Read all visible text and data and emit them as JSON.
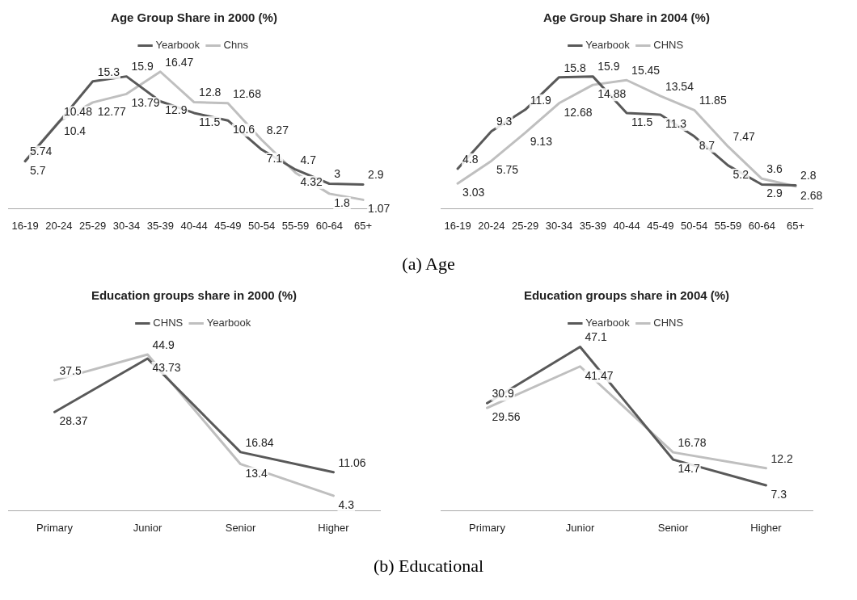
{
  "chart_data": [
    {
      "type": "line",
      "title": "Age Group Share in 2000 (%)",
      "categories": [
        "16-19",
        "20-24",
        "25-29",
        "30-34",
        "35-39",
        "40-44",
        "45-49",
        "50-54",
        "55-59",
        "60-64",
        "65+"
      ],
      "series": [
        {
          "name": "Yearbook",
          "color": "#595959",
          "values": [
            5.7,
            10.4,
            15.3,
            15.9,
            12.9,
            11.5,
            10.6,
            7.1,
            4.7,
            3,
            2.9
          ]
        },
        {
          "name": "Chns",
          "color": "#bfbfbf",
          "values": [
            5.74,
            10.48,
            12.77,
            13.79,
            16.47,
            12.8,
            12.68,
            8.27,
            4.32,
            1.8,
            1.07
          ]
        }
      ],
      "tick_labels": "x",
      "data_labels": true,
      "legend": "top",
      "marker": "none",
      "line_style": "solid",
      "grid": false,
      "annotations": [
        "(a) Age"
      ]
    },
    {
      "type": "line",
      "title": "Age Group Share in 2004 (%)",
      "categories": [
        "16-19",
        "20-24",
        "25-29",
        "30-34",
        "35-39",
        "40-44",
        "45-49",
        "50-54",
        "55-59",
        "60-64",
        "65+"
      ],
      "series": [
        {
          "name": "Yearbook",
          "color": "#595959",
          "values": [
            4.8,
            9.3,
            11.9,
            15.8,
            15.9,
            11.5,
            11.3,
            8.7,
            5.2,
            2.9,
            2.8
          ]
        },
        {
          "name": "CHNS",
          "color": "#bfbfbf",
          "values": [
            3.03,
            5.75,
            9.13,
            12.68,
            14.88,
            15.45,
            13.54,
            11.85,
            7.47,
            3.6,
            2.68
          ]
        }
      ],
      "tick_labels": "x",
      "data_labels": true,
      "legend": "top",
      "marker": "none",
      "line_style": "solid",
      "grid": false
    },
    {
      "type": "line",
      "title": "Education groups share in 2000 (%)",
      "categories": [
        "Primary",
        "Junior",
        "Senior",
        "Higher"
      ],
      "series": [
        {
          "name": "CHNS",
          "color": "#595959",
          "values": [
            28.37,
            43.73,
            16.84,
            11.06
          ]
        },
        {
          "name": "Yearbook",
          "color": "#bfbfbf",
          "values": [
            37.5,
            44.9,
            13.4,
            4.3
          ]
        }
      ],
      "tick_labels": "x",
      "data_labels": true,
      "legend": "top",
      "marker": "none",
      "line_style": "solid",
      "grid": false,
      "annotations": [
        "(b) Educational"
      ]
    },
    {
      "type": "line",
      "title": "Education groups share in 2004 (%)",
      "categories": [
        "Primary",
        "Junior",
        "Senior",
        "Higher"
      ],
      "series": [
        {
          "name": "Yearbook",
          "color": "#595959",
          "values": [
            30.9,
            47.1,
            14.7,
            7.3
          ]
        },
        {
          "name": "CHNS",
          "color": "#bfbfbf",
          "values": [
            29.56,
            41.47,
            16.78,
            12.2
          ]
        }
      ],
      "tick_labels": "x",
      "data_labels": true,
      "legend": "top",
      "marker": "none",
      "line_style": "solid",
      "grid": false
    }
  ]
}
